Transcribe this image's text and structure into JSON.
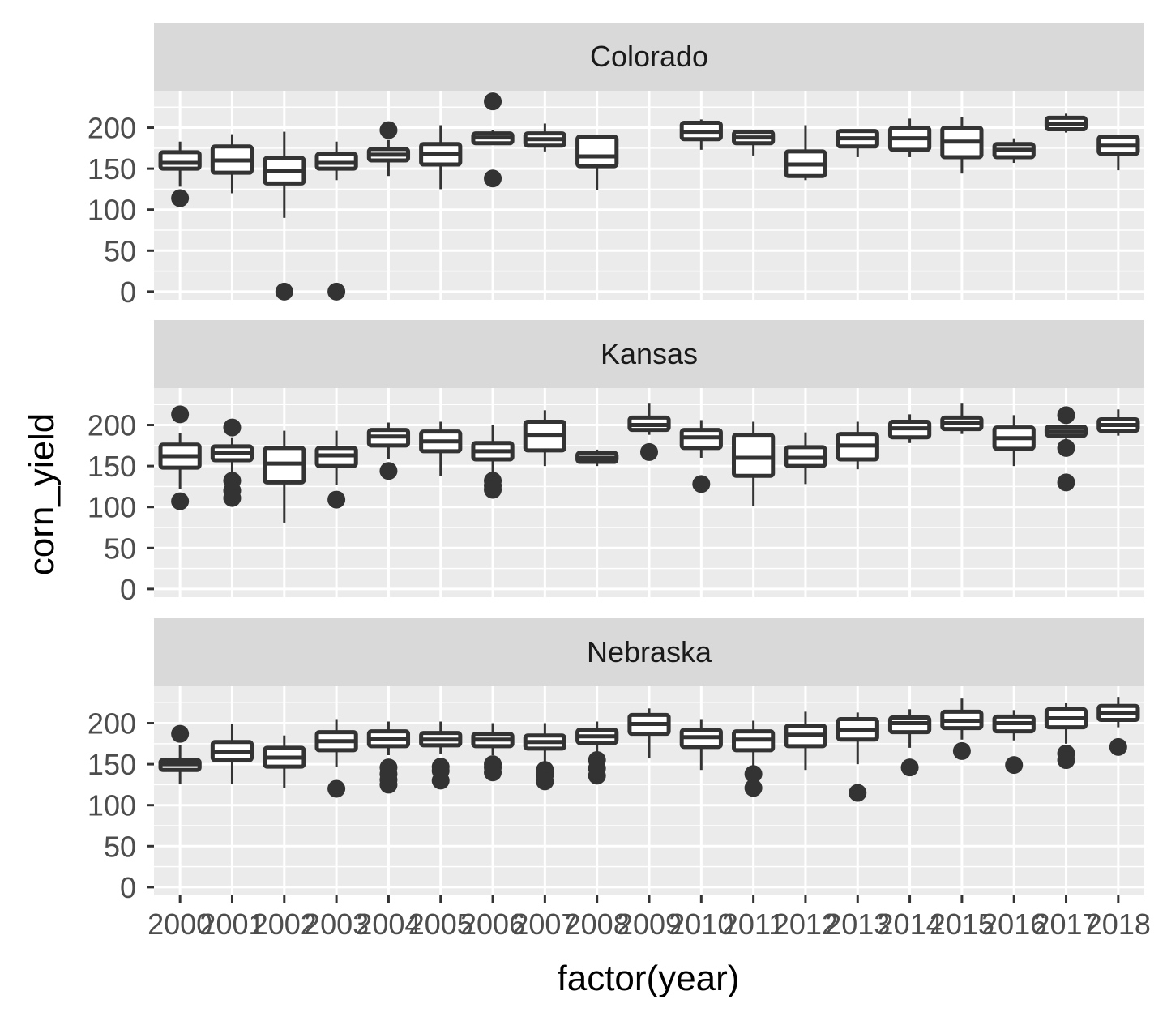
{
  "chart_data": {
    "type": "boxplot",
    "facet_layout": "stacked-vertical",
    "xlabel": "factor(year)",
    "ylabel": "corn_yield",
    "x_tick_labels": [
      "2000",
      "2001",
      "2002",
      "2003",
      "2004",
      "2005",
      "2006",
      "2007",
      "2008",
      "2009",
      "2010",
      "2011",
      "2012",
      "2013",
      "2014",
      "2015",
      "2016",
      "2017",
      "2018"
    ],
    "y_ticks": [
      0,
      50,
      100,
      150,
      200
    ],
    "y_tick_labels": [
      "0",
      "50",
      "100",
      "150",
      "200"
    ],
    "ylim": [
      -10,
      245
    ],
    "grid": true,
    "colors": {
      "panel_bg": "#ebebeb",
      "strip_bg": "#d9d9d9",
      "grid": "#ffffff",
      "box_fill": "#ffffff",
      "box_line": "#333333",
      "outlier": "#333333",
      "axis_text": "#4d4d4d"
    },
    "facets": [
      {
        "name": "Colorado",
        "boxes": [
          {
            "x": "2000",
            "low": 128,
            "q1": 150,
            "median": 157,
            "q3": 170,
            "high": 183,
            "outliers": [
              114
            ]
          },
          {
            "x": "2001",
            "low": 120,
            "q1": 145,
            "median": 160,
            "q3": 177,
            "high": 192,
            "outliers": []
          },
          {
            "x": "2002",
            "low": 90,
            "q1": 132,
            "median": 147,
            "q3": 163,
            "high": 195,
            "outliers": [
              0
            ]
          },
          {
            "x": "2003",
            "low": 136,
            "q1": 150,
            "median": 157,
            "q3": 168,
            "high": 183,
            "outliers": [
              0
            ]
          },
          {
            "x": "2004",
            "low": 141,
            "q1": 160,
            "median": 167,
            "q3": 174,
            "high": 185,
            "outliers": [
              197
            ]
          },
          {
            "x": "2005",
            "low": 125,
            "q1": 155,
            "median": 168,
            "q3": 180,
            "high": 203,
            "outliers": []
          },
          {
            "x": "2006",
            "low": 180,
            "q1": 181,
            "median": 188,
            "q3": 193,
            "high": 197,
            "outliers": [
              232,
              138
            ]
          },
          {
            "x": "2007",
            "low": 171,
            "q1": 178,
            "median": 186,
            "q3": 193,
            "high": 205,
            "outliers": []
          },
          {
            "x": "2008",
            "low": 124,
            "q1": 153,
            "median": 165,
            "q3": 189,
            "high": 189,
            "outliers": []
          },
          {
            "x": "2010",
            "low": 173,
            "q1": 186,
            "median": 195,
            "q3": 206,
            "high": 210,
            "outliers": []
          },
          {
            "x": "2011",
            "low": 166,
            "q1": 181,
            "median": 188,
            "q3": 195,
            "high": 197,
            "outliers": []
          },
          {
            "x": "2012",
            "low": 136,
            "q1": 141,
            "median": 155,
            "q3": 171,
            "high": 203,
            "outliers": []
          },
          {
            "x": "2013",
            "low": 164,
            "q1": 177,
            "median": 187,
            "q3": 196,
            "high": 198,
            "outliers": []
          },
          {
            "x": "2014",
            "low": 164,
            "q1": 173,
            "median": 187,
            "q3": 200,
            "high": 211,
            "outliers": []
          },
          {
            "x": "2015",
            "low": 144,
            "q1": 164,
            "median": 183,
            "q3": 200,
            "high": 213,
            "outliers": []
          },
          {
            "x": "2016",
            "low": 157,
            "q1": 164,
            "median": 173,
            "q3": 180,
            "high": 187,
            "outliers": []
          },
          {
            "x": "2017",
            "low": 194,
            "q1": 198,
            "median": 204,
            "q3": 212,
            "high": 217,
            "outliers": []
          },
          {
            "x": "2018",
            "low": 148,
            "q1": 168,
            "median": 178,
            "q3": 189,
            "high": 189,
            "outliers": []
          }
        ]
      },
      {
        "name": "Kansas",
        "boxes": [
          {
            "x": "2000",
            "low": 122,
            "q1": 148,
            "median": 162,
            "q3": 176,
            "high": 190,
            "outliers": [
              213,
              107
            ]
          },
          {
            "x": "2001",
            "low": 140,
            "q1": 157,
            "median": 166,
            "q3": 174,
            "high": 185,
            "outliers": [
              197,
              132,
              120,
              111
            ]
          },
          {
            "x": "2002",
            "low": 81,
            "q1": 130,
            "median": 153,
            "q3": 172,
            "high": 193,
            "outliers": []
          },
          {
            "x": "2003",
            "low": 127,
            "q1": 150,
            "median": 163,
            "q3": 172,
            "high": 193,
            "outliers": [
              109
            ]
          },
          {
            "x": "2004",
            "low": 158,
            "q1": 175,
            "median": 186,
            "q3": 194,
            "high": 203,
            "outliers": [
              144
            ]
          },
          {
            "x": "2005",
            "low": 138,
            "q1": 168,
            "median": 180,
            "q3": 192,
            "high": 204,
            "outliers": []
          },
          {
            "x": "2006",
            "low": 141,
            "q1": 158,
            "median": 168,
            "q3": 178,
            "high": 200,
            "outliers": [
              132,
              126,
              121
            ]
          },
          {
            "x": "2007",
            "low": 150,
            "q1": 169,
            "median": 188,
            "q3": 204,
            "high": 218,
            "outliers": []
          },
          {
            "x": "2008",
            "low": 150,
            "q1": 155,
            "median": 160,
            "q3": 166,
            "high": 170,
            "outliers": []
          },
          {
            "x": "2009",
            "low": 188,
            "q1": 194,
            "median": 200,
            "q3": 209,
            "high": 227,
            "outliers": [
              167
            ]
          },
          {
            "x": "2010",
            "low": 160,
            "q1": 172,
            "median": 185,
            "q3": 194,
            "high": 206,
            "outliers": [
              128
            ]
          },
          {
            "x": "2011",
            "low": 101,
            "q1": 138,
            "median": 160,
            "q3": 188,
            "high": 204,
            "outliers": []
          },
          {
            "x": "2012",
            "low": 128,
            "q1": 150,
            "median": 160,
            "q3": 173,
            "high": 191,
            "outliers": []
          },
          {
            "x": "2013",
            "low": 146,
            "q1": 158,
            "median": 175,
            "q3": 189,
            "high": 204,
            "outliers": []
          },
          {
            "x": "2014",
            "low": 178,
            "q1": 185,
            "median": 196,
            "q3": 204,
            "high": 213,
            "outliers": []
          },
          {
            "x": "2015",
            "low": 189,
            "q1": 195,
            "median": 202,
            "q3": 209,
            "high": 227,
            "outliers": []
          },
          {
            "x": "2016",
            "low": 150,
            "q1": 171,
            "median": 184,
            "q3": 197,
            "high": 212,
            "outliers": []
          },
          {
            "x": "2017",
            "low": 183,
            "q1": 187,
            "median": 192,
            "q3": 198,
            "high": 200,
            "outliers": [
              212,
              172,
              130
            ]
          },
          {
            "x": "2018",
            "low": 187,
            "q1": 193,
            "median": 200,
            "q3": 207,
            "high": 219,
            "outliers": []
          }
        ]
      },
      {
        "name": "Nebraska",
        "boxes": [
          {
            "x": "2000",
            "low": 126,
            "q1": 143,
            "median": 150,
            "q3": 155,
            "high": 173,
            "outliers": [
              187
            ]
          },
          {
            "x": "2001",
            "low": 126,
            "q1": 155,
            "median": 165,
            "q3": 177,
            "high": 199,
            "outliers": []
          },
          {
            "x": "2002",
            "low": 121,
            "q1": 147,
            "median": 158,
            "q3": 170,
            "high": 185,
            "outliers": []
          },
          {
            "x": "2003",
            "low": 147,
            "q1": 167,
            "median": 178,
            "q3": 189,
            "high": 205,
            "outliers": [
              120
            ]
          },
          {
            "x": "2004",
            "low": 161,
            "q1": 172,
            "median": 181,
            "q3": 190,
            "high": 202,
            "outliers": [
              146,
              138,
              131,
              125
            ]
          },
          {
            "x": "2005",
            "low": 163,
            "q1": 173,
            "median": 180,
            "q3": 188,
            "high": 202,
            "outliers": [
              147,
              142,
              130
            ]
          },
          {
            "x": "2006",
            "low": 161,
            "q1": 172,
            "median": 180,
            "q3": 187,
            "high": 200,
            "outliers": [
              150,
              146,
              140
            ]
          },
          {
            "x": "2007",
            "low": 151,
            "q1": 169,
            "median": 177,
            "q3": 185,
            "high": 200,
            "outliers": [
              143,
              137,
              129
            ]
          },
          {
            "x": "2008",
            "low": 160,
            "q1": 176,
            "median": 184,
            "q3": 192,
            "high": 202,
            "outliers": [
              155,
              145,
              136
            ]
          },
          {
            "x": "2009",
            "low": 157,
            "q1": 187,
            "median": 199,
            "q3": 210,
            "high": 218,
            "outliers": []
          },
          {
            "x": "2010",
            "low": 143,
            "q1": 171,
            "median": 183,
            "q3": 192,
            "high": 205,
            "outliers": []
          },
          {
            "x": "2011",
            "low": 147,
            "q1": 167,
            "median": 180,
            "q3": 190,
            "high": 203,
            "outliers": [
              138,
              121
            ]
          },
          {
            "x": "2012",
            "low": 143,
            "q1": 172,
            "median": 186,
            "q3": 197,
            "high": 214,
            "outliers": []
          },
          {
            "x": "2013",
            "low": 150,
            "q1": 180,
            "median": 192,
            "q3": 205,
            "high": 213,
            "outliers": [
              115
            ]
          },
          {
            "x": "2014",
            "low": 170,
            "q1": 189,
            "median": 200,
            "q3": 207,
            "high": 217,
            "outliers": [
              146
            ]
          },
          {
            "x": "2015",
            "low": 180,
            "q1": 194,
            "median": 203,
            "q3": 214,
            "high": 230,
            "outliers": [
              166
            ]
          },
          {
            "x": "2016",
            "low": 179,
            "q1": 190,
            "median": 200,
            "q3": 208,
            "high": 216,
            "outliers": [
              149
            ]
          },
          {
            "x": "2017",
            "low": 175,
            "q1": 195,
            "median": 206,
            "q3": 217,
            "high": 225,
            "outliers": [
              163,
              155
            ]
          },
          {
            "x": "2018",
            "low": 195,
            "q1": 204,
            "median": 212,
            "q3": 221,
            "high": 232,
            "outliers": [
              171
            ]
          }
        ]
      }
    ]
  }
}
